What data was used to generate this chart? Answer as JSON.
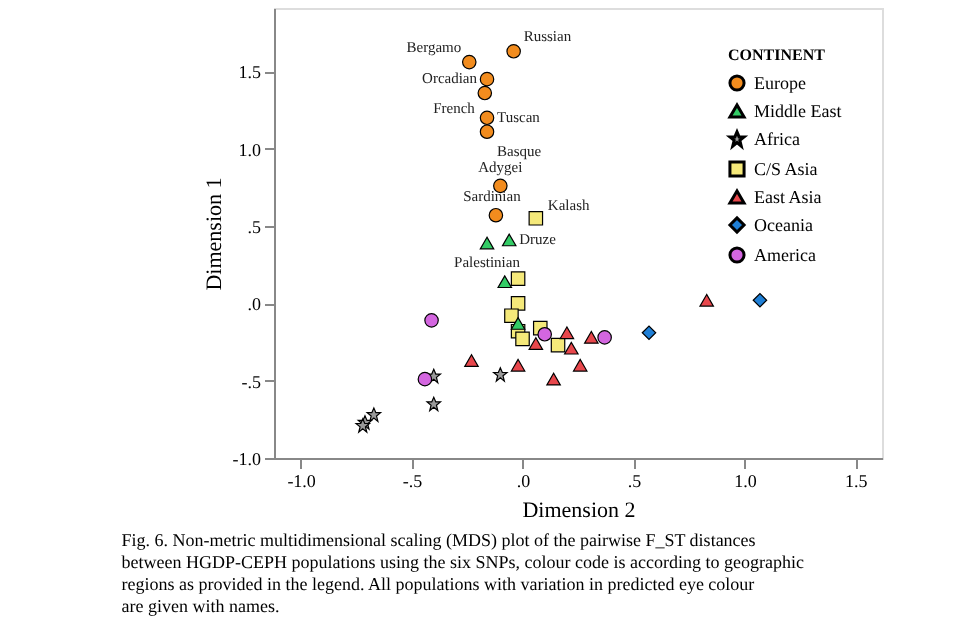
{
  "chart_data": {
    "type": "scatter",
    "xlabel": "Dimension 2",
    "ylabel": "Dimension 1",
    "legend_title": "CONTINENT",
    "legend": "top right",
    "grid": false,
    "xlim": [
      -1.12,
      1.62
    ],
    "ylim": [
      -1.0,
      1.91
    ],
    "xticks": [
      {
        "value": -1,
        "label": "-1.0"
      },
      {
        "value": -0.5,
        "label": "-.5"
      },
      {
        "value": 0,
        "label": ".0"
      },
      {
        "value": 0.5,
        "label": ".5"
      },
      {
        "value": 1,
        "label": "1.0"
      },
      {
        "value": 1.5,
        "label": "1.5"
      }
    ],
    "yticks": [
      {
        "value": -1,
        "label": "-1.0"
      },
      {
        "value": -0.5,
        "label": "-.5"
      },
      {
        "value": 0,
        "label": ".0"
      },
      {
        "value": 0.5,
        "label": ".5"
      },
      {
        "value": 1,
        "label": "1.0"
      },
      {
        "value": 1.5,
        "label": "1.5"
      }
    ],
    "series": [
      {
        "name": "Europe",
        "color": "#f28c1e",
        "marker": "circle",
        "x": [
          -0.04,
          -0.24,
          -0.16,
          -0.17,
          -0.16,
          -0.16,
          -0.1,
          -0.12
        ],
        "values": [
          1.63,
          1.56,
          1.45,
          1.36,
          1.2,
          1.11,
          0.76,
          0.57
        ]
      },
      {
        "name": "Middle East",
        "color": "#33cc66",
        "marker": "triangle",
        "x": [
          -0.16,
          -0.06,
          -0.08,
          -0.02
        ],
        "values": [
          0.39,
          0.41,
          0.14,
          -0.13
        ]
      },
      {
        "name": "Africa",
        "color": "#999999",
        "marker": "star",
        "x": [
          -0.4,
          -0.4,
          -0.1,
          -0.67,
          -0.71,
          -0.72
        ],
        "values": [
          -0.47,
          -0.65,
          -0.46,
          -0.72,
          -0.77,
          -0.79
        ]
      },
      {
        "name": "C/S Asia",
        "color": "#f5e97a",
        "marker": "square",
        "x": [
          0.06,
          -0.02,
          -0.02,
          -0.05,
          -0.02,
          0.0,
          0.08,
          0.16
        ],
        "values": [
          0.55,
          0.16,
          0.0,
          -0.08,
          -0.18,
          -0.23,
          -0.16,
          -0.27
        ]
      },
      {
        "name": "East Asia",
        "color": "#e8474c",
        "marker": "triangle",
        "x": [
          -0.23,
          -0.02,
          0.14,
          0.06,
          0.2,
          0.22,
          0.26,
          0.31,
          0.83
        ],
        "values": [
          -0.37,
          -0.4,
          -0.49,
          -0.26,
          -0.19,
          -0.29,
          -0.4,
          -0.22,
          0.02
        ]
      },
      {
        "name": "Oceania",
        "color": "#1f7fd6",
        "marker": "diamond",
        "x": [
          0.57,
          1.07
        ],
        "values": [
          -0.19,
          0.02
        ]
      },
      {
        "name": "America",
        "color": "#d466e0",
        "marker": "circle",
        "x": [
          -0.41,
          -0.44,
          0.1,
          0.37
        ],
        "values": [
          -0.11,
          -0.49,
          -0.2,
          -0.22
        ]
      }
    ],
    "annotations": [
      {
        "text": "Russian",
        "x": -0.04,
        "y": 1.63
      },
      {
        "text": "Bergamo",
        "x": -0.24,
        "y": 1.56
      },
      {
        "text": "Orcadian",
        "x": -0.16,
        "y": 1.45
      },
      {
        "text": "French",
        "x": -0.17,
        "y": 1.36
      },
      {
        "text": "Tuscan",
        "x": -0.16,
        "y": 1.2
      },
      {
        "text": "Basque",
        "x": -0.16,
        "y": 1.11
      },
      {
        "text": "Adygei",
        "x": -0.1,
        "y": 0.76
      },
      {
        "text": "Sardinian",
        "x": -0.12,
        "y": 0.57
      },
      {
        "text": "Kalash",
        "x": 0.06,
        "y": 0.55
      },
      {
        "text": "Druze",
        "x": -0.06,
        "y": 0.41
      },
      {
        "text": "Palestinian",
        "x": -0.16,
        "y": 0.39
      },
      "Fig. 6. Non-metric multidimensional scaling (MDS) plot of the pairwise F_ST distances between HGDP-CEPH populations using the six SNPs, colour code is according to geographic regions as provided in the legend. All populations with variation in predicted eye colour are given with names."
    ]
  }
}
